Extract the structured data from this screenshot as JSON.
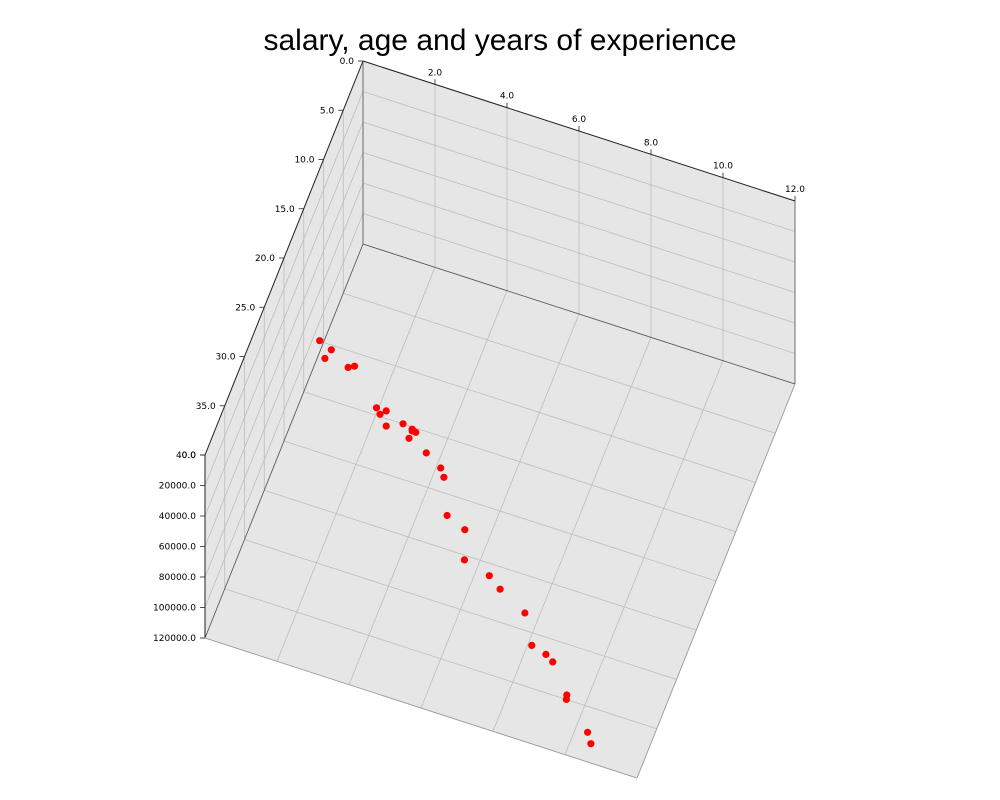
{
  "chart_data": {
    "type": "scatter3d",
    "title": "salary, age and years of experience",
    "xlabel": "",
    "ylabel": "",
    "zlabel": "",
    "x_ticks": [
      "2.0",
      "4.0",
      "6.0",
      "8.0",
      "10.0",
      "12.0"
    ],
    "y_ticks": [
      "0.0",
      "5.0",
      "10.0",
      "15.0",
      "20.0",
      "25.0",
      "30.0",
      "35.0",
      "40.0"
    ],
    "z_ticks": [
      "0.0",
      "20000.0",
      "40000.0",
      "60000.0",
      "80000.0",
      "100000.0",
      "120000.0"
    ],
    "xlim": [
      0,
      12
    ],
    "ylim": [
      0,
      40
    ],
    "zlim": [
      0,
      120000
    ],
    "grid": true,
    "marker_color": "#ff0000",
    "points": [
      {
        "x": 1.1,
        "y": 21,
        "z": 39343
      },
      {
        "x": 1.3,
        "y": 21.5,
        "z": 46205
      },
      {
        "x": 1.5,
        "y": 21.7,
        "z": 37731
      },
      {
        "x": 2.0,
        "y": 22,
        "z": 43525
      },
      {
        "x": 2.2,
        "y": 22.2,
        "z": 39891
      },
      {
        "x": 2.9,
        "y": 23,
        "z": 56642
      },
      {
        "x": 3.0,
        "y": 23,
        "z": 60150
      },
      {
        "x": 3.2,
        "y": 23.3,
        "z": 54445
      },
      {
        "x": 3.2,
        "y": 23.3,
        "z": 64445
      },
      {
        "x": 3.7,
        "y": 23.6,
        "z": 57189
      },
      {
        "x": 3.9,
        "y": 23.9,
        "z": 63218
      },
      {
        "x": 4.0,
        "y": 24,
        "z": 55794
      },
      {
        "x": 4.0,
        "y": 24,
        "z": 56957
      },
      {
        "x": 4.1,
        "y": 24,
        "z": 57081
      },
      {
        "x": 4.5,
        "y": 25,
        "z": 61111
      },
      {
        "x": 4.9,
        "y": 25,
        "z": 67938
      },
      {
        "x": 5.1,
        "y": 26,
        "z": 66029
      },
      {
        "x": 5.3,
        "y": 27,
        "z": 83088
      },
      {
        "x": 5.9,
        "y": 28,
        "z": 81363
      },
      {
        "x": 6.0,
        "y": 29,
        "z": 93940
      },
      {
        "x": 6.8,
        "y": 30,
        "z": 91738
      },
      {
        "x": 7.1,
        "y": 30,
        "z": 98273
      },
      {
        "x": 7.9,
        "y": 31,
        "z": 101302
      },
      {
        "x": 8.2,
        "y": 32,
        "z": 113812
      },
      {
        "x": 8.7,
        "y": 33,
        "z": 109431
      },
      {
        "x": 9.0,
        "y": 34,
        "z": 105582
      },
      {
        "x": 9.5,
        "y": 35,
        "z": 116969
      },
      {
        "x": 9.6,
        "y": 36,
        "z": 112635
      },
      {
        "x": 10.3,
        "y": 37,
        "z": 122391
      },
      {
        "x": 10.5,
        "y": 38,
        "z": 121872
      }
    ]
  }
}
